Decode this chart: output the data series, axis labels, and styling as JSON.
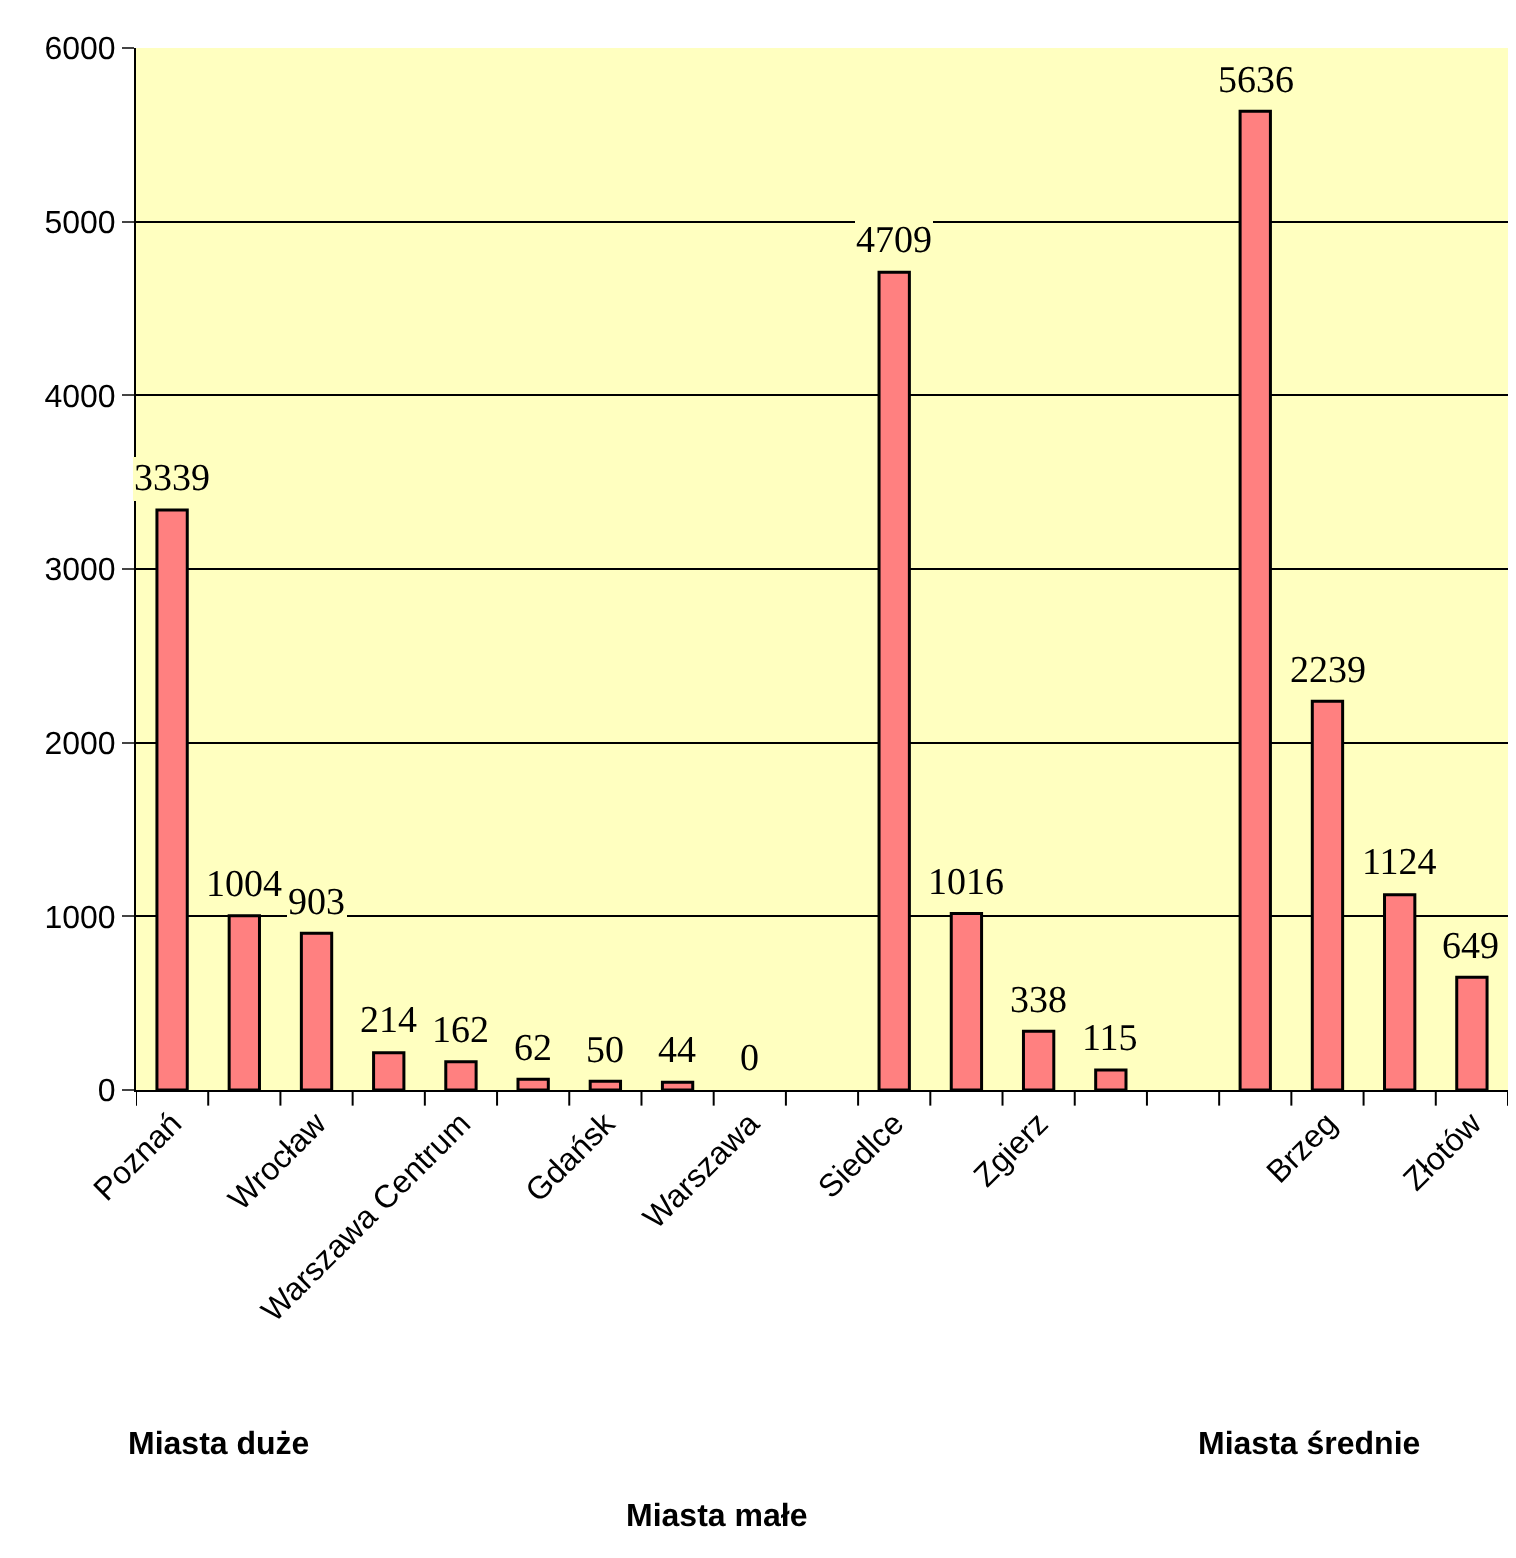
{
  "chart_data": {
    "type": "bar",
    "categories": [
      "Poznań",
      null,
      "Wrocław",
      null,
      "Warszawa Centrum",
      null,
      "Gdańsk",
      null,
      "Warszawa",
      null,
      "Siedlce",
      null,
      "Zgierz",
      null,
      null,
      null,
      "Brzeg",
      null,
      "Złotów"
    ],
    "values": [
      3339,
      1004,
      903,
      214,
      162,
      62,
      50,
      44,
      0,
      null,
      4709,
      1016,
      338,
      115,
      null,
      5636,
      2239,
      1124,
      649
    ],
    "color": "#ff8080",
    "ylim": [
      0,
      6000
    ],
    "yticks": [
      0,
      1000,
      2000,
      3000,
      4000,
      5000,
      6000
    ],
    "grid": "y",
    "data_labels": true,
    "annotations": [
      "Miasta duże",
      "Miasta małe",
      "Miasta średnie"
    ]
  }
}
